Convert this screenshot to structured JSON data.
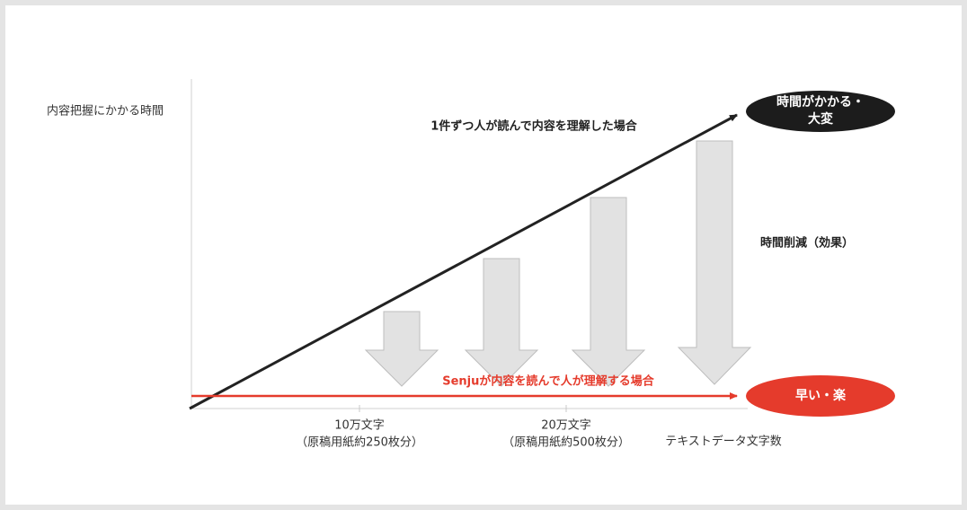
{
  "y_axis_label": "内容把握にかかる時間",
  "x_axis_label": "テキストデータ文字数",
  "x_ticks": [
    {
      "label": "10万文字",
      "sublabel": "（原稿用紙約250枚分）"
    },
    {
      "label": "20万文字",
      "sublabel": "（原稿用紙約500枚分）"
    }
  ],
  "lines": [
    {
      "label": "1件ずつ人が読んで内容を理解した場合"
    },
    {
      "label": "Senjuが内容を読んで人が理解する場合"
    }
  ],
  "callouts": [
    {
      "lines": [
        "時間がかかる・",
        "大変"
      ]
    },
    {
      "lines": [
        "早い・楽"
      ]
    }
  ],
  "effect_label": "時間削減（効果）"
}
